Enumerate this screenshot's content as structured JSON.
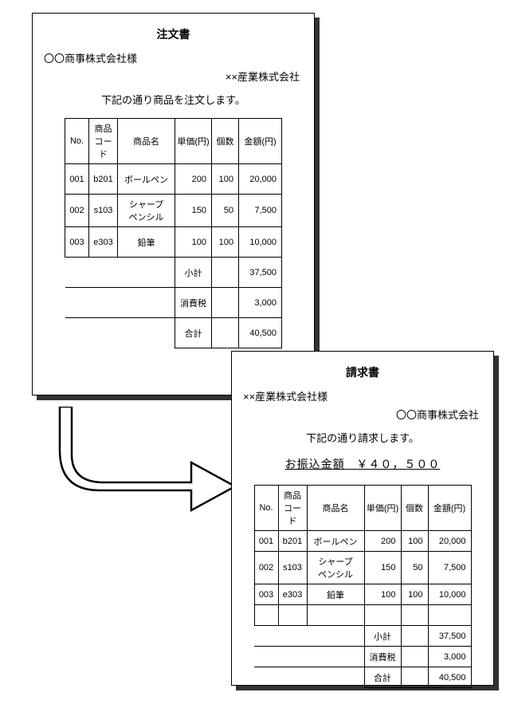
{
  "order": {
    "title": "注文書",
    "recipient": "〇〇商事株式会社様",
    "sender": "××産業株式会社",
    "note": "下記の通り商品を注文します。",
    "headers": {
      "no": "No.",
      "code": "商品\nコード",
      "name": "商品名",
      "unit": "単価(円)",
      "qty": "個数",
      "amt": "金額(円)"
    },
    "rows": [
      {
        "no": "001",
        "code": "b201",
        "name": "ボールペン",
        "unit": "200",
        "qty": "100",
        "amt": "20,000"
      },
      {
        "no": "002",
        "code": "s103",
        "name": "シャープ\nペンシル",
        "unit": "150",
        "qty": "50",
        "amt": "7,500"
      },
      {
        "no": "003",
        "code": "e303",
        "name": "鉛筆",
        "unit": "100",
        "qty": "100",
        "amt": "10,000"
      }
    ],
    "subtotal_label": "小計",
    "subtotal": "37,500",
    "tax_label": "消費税",
    "tax": "3,000",
    "total_label": "合計",
    "total": "40,500"
  },
  "invoice": {
    "title": "請求書",
    "recipient": "××産業株式会社様",
    "sender": "〇〇商事株式会社",
    "note": "下記の通り請求します。",
    "amount_label": "お振込金額",
    "amount": "￥４０，５００",
    "headers": {
      "no": "No.",
      "code": "商品\nコード",
      "name": "商品名",
      "unit": "単価(円)",
      "qty": "個数",
      "amt": "金額(円)"
    },
    "rows": [
      {
        "no": "001",
        "code": "b201",
        "name": "ボールペン",
        "unit": "200",
        "qty": "100",
        "amt": "20,000"
      },
      {
        "no": "002",
        "code": "s103",
        "name": "シャープ\nペンシル",
        "unit": "150",
        "qty": "50",
        "amt": "7,500"
      },
      {
        "no": "003",
        "code": "e303",
        "name": "鉛筆",
        "unit": "100",
        "qty": "100",
        "amt": "10,000"
      }
    ],
    "subtotal_label": "小計",
    "subtotal": "37,500",
    "tax_label": "消費税",
    "tax": "3,000",
    "total_label": "合計",
    "total": "40,500"
  }
}
